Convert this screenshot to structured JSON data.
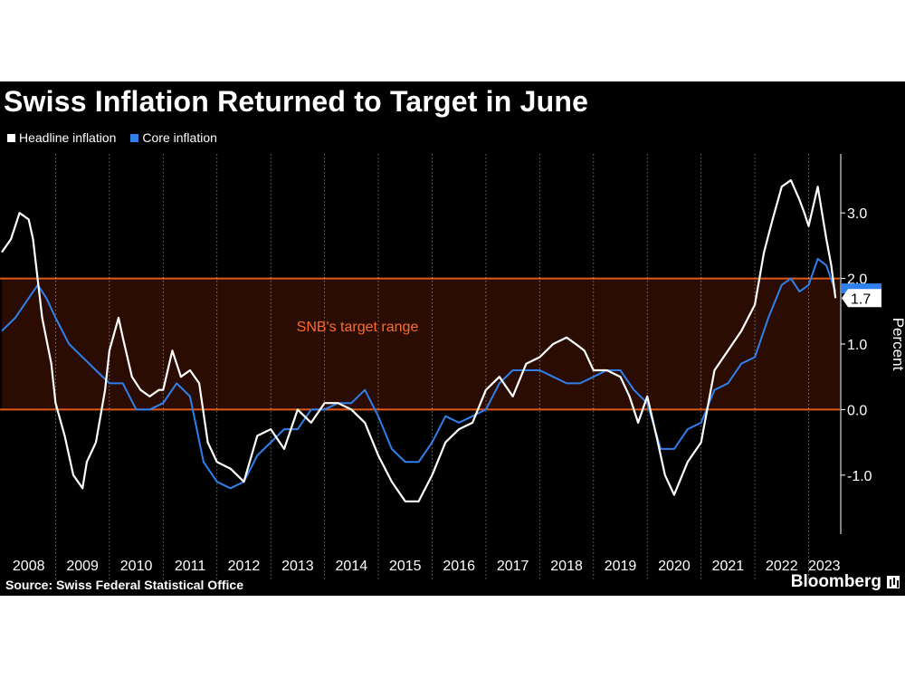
{
  "chart_data": {
    "type": "line",
    "title": "Swiss Inflation Returned to Target in June",
    "ylabel": "Percent",
    "ylim": [
      -1.9,
      3.9
    ],
    "yticks": [
      -1.0,
      0.0,
      1.0,
      2.0,
      3.0
    ],
    "ytick_labels": [
      "-1.0",
      "0.0",
      "1.0",
      "2.0",
      "3.0"
    ],
    "xlim": [
      2008.0,
      2023.58
    ],
    "x_ticks": [
      "2008",
      "2009",
      "2010",
      "2011",
      "2012",
      "2013",
      "2014",
      "2015",
      "2016",
      "2017",
      "2018",
      "2019",
      "2020",
      "2021",
      "2022",
      "2023"
    ],
    "target_band": {
      "low": 0.0,
      "high": 2.0,
      "label": "SNB's target range"
    },
    "last_value_label": "1.7",
    "grid": "vertical dotted at year boundaries",
    "legend": "top-left",
    "series": [
      {
        "name": "Headline inflation",
        "color": "#ffffff",
        "x": [
          2008.0,
          2008.17,
          2008.33,
          2008.5,
          2008.58,
          2008.75,
          2008.92,
          2009.0,
          2009.17,
          2009.33,
          2009.5,
          2009.58,
          2009.75,
          2009.92,
          2010.0,
          2010.17,
          2010.25,
          2010.42,
          2010.58,
          2010.75,
          2010.92,
          2011.0,
          2011.17,
          2011.33,
          2011.5,
          2011.67,
          2011.83,
          2012.0,
          2012.25,
          2012.5,
          2012.75,
          2013.0,
          2013.25,
          2013.5,
          2013.75,
          2014.0,
          2014.25,
          2014.5,
          2014.75,
          2015.0,
          2015.25,
          2015.5,
          2015.75,
          2016.0,
          2016.25,
          2016.5,
          2016.75,
          2017.0,
          2017.25,
          2017.5,
          2017.75,
          2018.0,
          2018.25,
          2018.5,
          2018.67,
          2018.83,
          2019.0,
          2019.25,
          2019.5,
          2019.67,
          2019.83,
          2020.0,
          2020.17,
          2020.33,
          2020.5,
          2020.75,
          2021.0,
          2021.25,
          2021.5,
          2021.75,
          2022.0,
          2022.17,
          2022.33,
          2022.5,
          2022.67,
          2022.83,
          2022.92,
          2023.0,
          2023.17,
          2023.33,
          2023.42,
          2023.5
        ],
        "values": [
          2.4,
          2.6,
          3.0,
          2.9,
          2.6,
          1.4,
          0.7,
          0.1,
          -0.4,
          -1.0,
          -1.2,
          -0.8,
          -0.5,
          0.3,
          0.9,
          1.4,
          1.1,
          0.5,
          0.3,
          0.2,
          0.3,
          0.3,
          0.9,
          0.5,
          0.6,
          0.4,
          -0.5,
          -0.8,
          -0.9,
          -1.1,
          -0.4,
          -0.3,
          -0.6,
          0.0,
          -0.2,
          0.1,
          0.1,
          0.0,
          -0.2,
          -0.7,
          -1.1,
          -1.4,
          -1.4,
          -1.0,
          -0.5,
          -0.3,
          -0.2,
          0.3,
          0.5,
          0.2,
          0.7,
          0.8,
          1.0,
          1.1,
          1.0,
          0.9,
          0.6,
          0.6,
          0.5,
          0.2,
          -0.2,
          0.2,
          -0.4,
          -1.0,
          -1.3,
          -0.8,
          -0.5,
          0.6,
          0.9,
          1.2,
          1.6,
          2.4,
          2.9,
          3.4,
          3.5,
          3.2,
          3.0,
          2.8,
          3.4,
          2.6,
          2.2,
          1.7
        ]
      },
      {
        "name": "Core inflation",
        "color": "#2f80ed",
        "x": [
          2008.0,
          2008.25,
          2008.5,
          2008.67,
          2008.83,
          2009.0,
          2009.25,
          2009.5,
          2009.75,
          2010.0,
          2010.25,
          2010.5,
          2010.75,
          2011.0,
          2011.25,
          2011.5,
          2011.75,
          2012.0,
          2012.25,
          2012.5,
          2012.75,
          2013.0,
          2013.25,
          2013.5,
          2013.75,
          2014.0,
          2014.25,
          2014.5,
          2014.75,
          2015.0,
          2015.25,
          2015.5,
          2015.75,
          2016.0,
          2016.25,
          2016.5,
          2016.75,
          2017.0,
          2017.25,
          2017.5,
          2017.75,
          2018.0,
          2018.25,
          2018.5,
          2018.75,
          2019.0,
          2019.25,
          2019.5,
          2019.75,
          2020.0,
          2020.25,
          2020.5,
          2020.75,
          2021.0,
          2021.25,
          2021.5,
          2021.75,
          2022.0,
          2022.25,
          2022.5,
          2022.67,
          2022.83,
          2023.0,
          2023.17,
          2023.33,
          2023.5
        ],
        "values": [
          1.2,
          1.4,
          1.7,
          1.9,
          1.7,
          1.4,
          1.0,
          0.8,
          0.6,
          0.4,
          0.4,
          0.0,
          0.0,
          0.1,
          0.4,
          0.2,
          -0.8,
          -1.1,
          -1.2,
          -1.1,
          -0.7,
          -0.5,
          -0.3,
          -0.3,
          0.0,
          0.0,
          0.1,
          0.1,
          0.3,
          -0.1,
          -0.6,
          -0.8,
          -0.8,
          -0.5,
          -0.1,
          -0.2,
          -0.1,
          0.0,
          0.4,
          0.6,
          0.6,
          0.6,
          0.5,
          0.4,
          0.4,
          0.5,
          0.6,
          0.6,
          0.3,
          0.1,
          -0.6,
          -0.6,
          -0.3,
          -0.2,
          0.3,
          0.4,
          0.7,
          0.8,
          1.4,
          1.9,
          2.0,
          1.8,
          1.9,
          2.3,
          2.2,
          1.8
        ]
      }
    ]
  },
  "source_text": "Source: Swiss Federal Statistical Office",
  "brand_name": "Bloomberg"
}
